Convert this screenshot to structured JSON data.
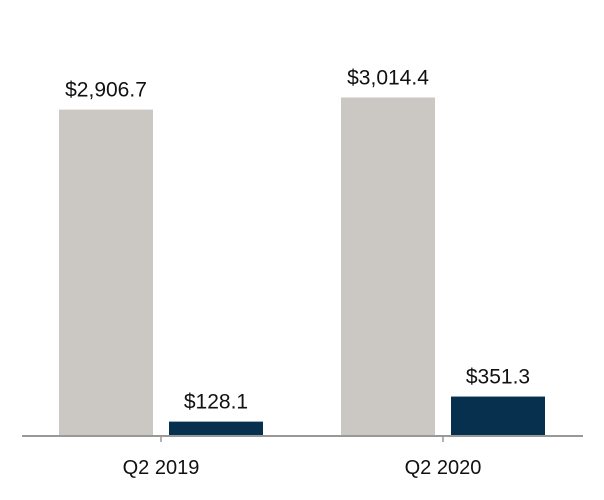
{
  "chart_data": {
    "type": "bar",
    "title": "",
    "xlabel": "",
    "ylabel": "",
    "categories": [
      "Q2 2019",
      "Q2 2020"
    ],
    "series": [
      {
        "values": [
          2906.7,
          3014.4
        ],
        "labels": [
          "$2,906.7",
          "$3,014.4"
        ],
        "color": "#cbc8c3"
      },
      {
        "values": [
          128.1,
          351.3
        ],
        "labels": [
          "$128.1",
          "$351.3"
        ],
        "color": "#06304e"
      }
    ],
    "ylim": [
      0,
      3500
    ],
    "grid": false,
    "legend": "none",
    "axis_color": "#999999"
  }
}
